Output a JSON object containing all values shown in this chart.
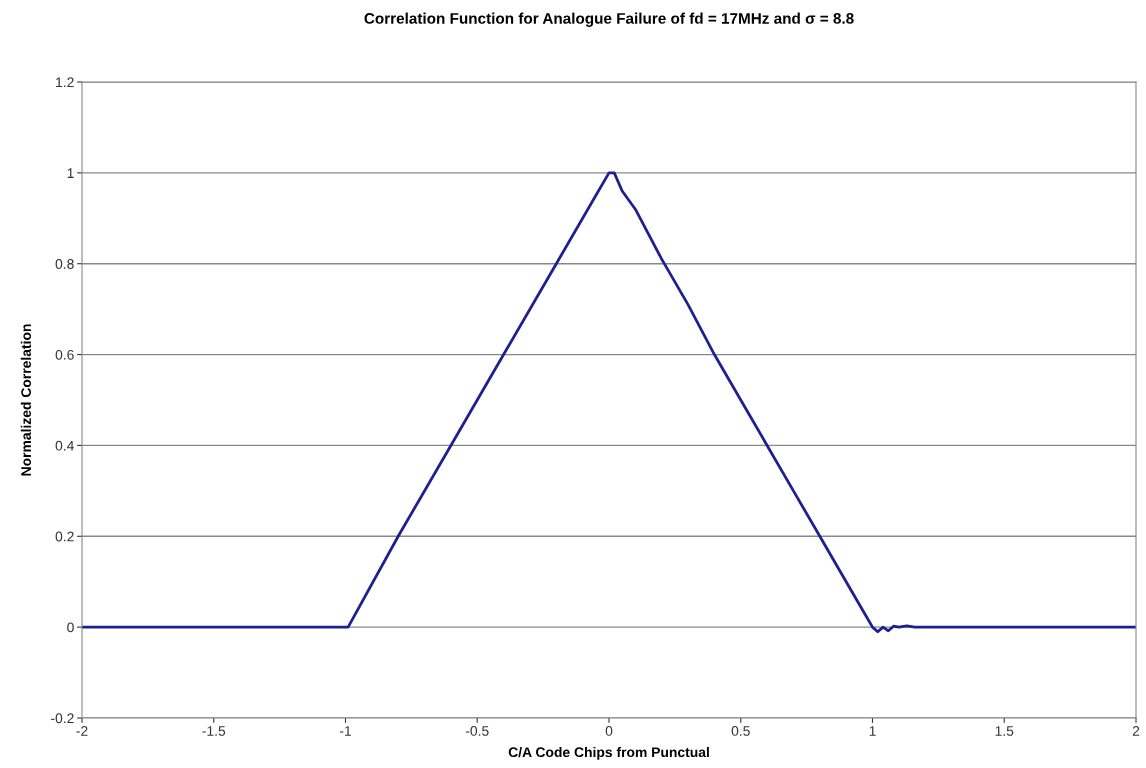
{
  "chart_data": {
    "type": "line",
    "title": "Correlation Function for Analogue Failure of fd = 17MHz and σ = 8.8",
    "xlabel": "C/A Code Chips from Punctual",
    "ylabel": "Normalized Correlation",
    "series": [
      {
        "color": "#1f1f8f",
        "x": [
          -2,
          -1.5,
          -1.0,
          -0.99,
          -0.8,
          -0.6,
          -0.4,
          -0.2,
          -0.05,
          0.0,
          0.02,
          0.05,
          0.1,
          0.2,
          0.3,
          0.4,
          0.5,
          0.6,
          0.7,
          0.8,
          0.9,
          0.97,
          1.0,
          1.02,
          1.04,
          1.06,
          1.08,
          1.1,
          1.13,
          1.16,
          1.5,
          2
        ],
        "values": [
          0,
          0,
          0,
          0,
          0.2,
          0.4,
          0.6,
          0.8,
          0.95,
          1.0,
          1.0,
          0.96,
          0.92,
          0.81,
          0.71,
          0.6,
          0.5,
          0.4,
          0.3,
          0.2,
          0.1,
          0.03,
          0,
          -0.01,
          0,
          -0.008,
          0.002,
          0,
          0.003,
          0,
          0,
          0
        ]
      }
    ],
    "xlim": [
      -2,
      2
    ],
    "xticks": [
      -2,
      -1.5,
      -1,
      -0.5,
      0,
      0.5,
      1,
      1.5,
      2
    ],
    "ylim": [
      -0.2,
      1.2
    ],
    "yticks": [
      -0.2,
      0,
      0.2,
      0.4,
      0.6,
      0.8,
      1,
      1.2
    ],
    "grid": "y",
    "marker": "none",
    "line_style": "solid"
  }
}
